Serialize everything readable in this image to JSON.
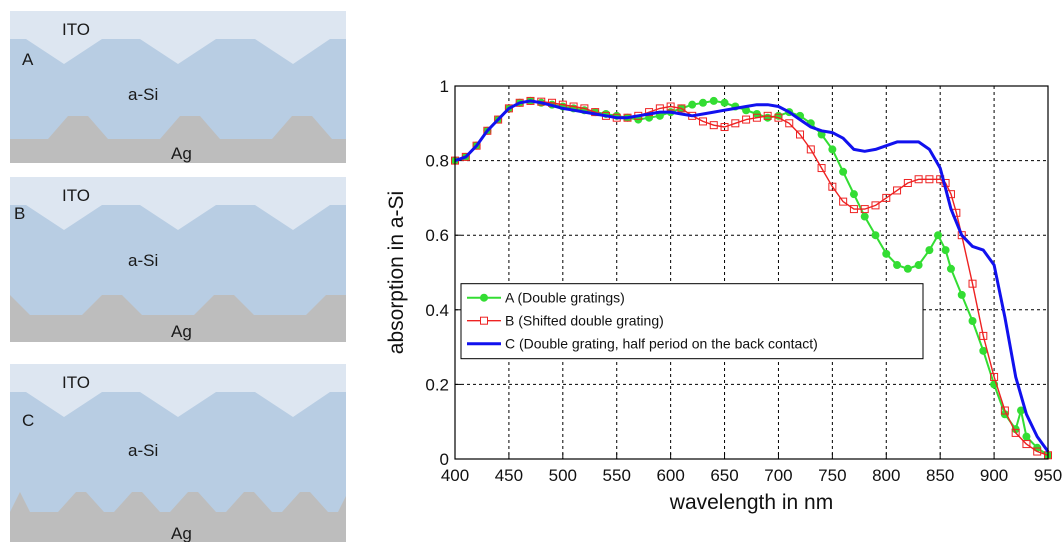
{
  "panels": [
    {
      "id": "A",
      "letter": "A",
      "top_label": "ITO",
      "middle_label": "a-Si",
      "bottom_label": "Ag"
    },
    {
      "id": "B",
      "letter": "B",
      "top_label": "ITO",
      "middle_label": "a-Si",
      "bottom_label": "Ag"
    },
    {
      "id": "C",
      "letter": "C",
      "top_label": "ITO",
      "middle_label": "a-Si",
      "bottom_label": "Ag"
    }
  ],
  "colors": {
    "ito": "#dde6f1",
    "asi": "#b8cde3",
    "ag": "#bdbdbd",
    "series_a": "#33dd33",
    "series_b": "#ee2222",
    "series_c": "#1111ee"
  },
  "chart_data": {
    "type": "line",
    "title": "",
    "xlabel": "wavelength in nm",
    "ylabel": "absorption in a-Si",
    "xlim": [
      400,
      950
    ],
    "ylim": [
      0,
      1
    ],
    "xticks": [
      400,
      450,
      500,
      550,
      600,
      650,
      700,
      750,
      800,
      850,
      900,
      950
    ],
    "yticks": [
      0,
      0.2,
      0.4,
      0.6,
      0.8,
      1
    ],
    "ytick_labels": [
      "0",
      "0.2",
      "0.4",
      "0.6",
      "0.8",
      "1"
    ],
    "grid": true,
    "legend_position": "lower-left",
    "series": [
      {
        "name": "A (Double gratings)",
        "marker": "filled-circle",
        "x": [
          400,
          410,
          420,
          430,
          440,
          450,
          460,
          470,
          480,
          490,
          500,
          510,
          520,
          530,
          540,
          550,
          560,
          570,
          580,
          590,
          600,
          610,
          620,
          630,
          640,
          650,
          660,
          670,
          680,
          690,
          700,
          710,
          720,
          730,
          740,
          750,
          760,
          770,
          780,
          790,
          800,
          810,
          820,
          830,
          840,
          848,
          855,
          860,
          870,
          880,
          890,
          900,
          910,
          920,
          925,
          930,
          940,
          950
        ],
        "y": [
          0.8,
          0.81,
          0.84,
          0.88,
          0.91,
          0.94,
          0.955,
          0.96,
          0.955,
          0.95,
          0.945,
          0.94,
          0.935,
          0.93,
          0.925,
          0.92,
          0.915,
          0.91,
          0.915,
          0.92,
          0.93,
          0.94,
          0.95,
          0.955,
          0.96,
          0.955,
          0.945,
          0.935,
          0.925,
          0.915,
          0.92,
          0.93,
          0.92,
          0.9,
          0.87,
          0.83,
          0.77,
          0.71,
          0.65,
          0.6,
          0.55,
          0.52,
          0.51,
          0.52,
          0.56,
          0.6,
          0.56,
          0.51,
          0.44,
          0.37,
          0.29,
          0.2,
          0.12,
          0.08,
          0.13,
          0.06,
          0.03,
          0.01
        ]
      },
      {
        "name": "B (Shifted double grating)",
        "marker": "open-square",
        "x": [
          400,
          410,
          420,
          430,
          440,
          450,
          460,
          470,
          480,
          490,
          500,
          510,
          520,
          530,
          540,
          550,
          560,
          570,
          580,
          590,
          600,
          610,
          620,
          630,
          640,
          650,
          660,
          670,
          680,
          690,
          700,
          710,
          720,
          730,
          740,
          750,
          760,
          770,
          780,
          790,
          800,
          810,
          820,
          830,
          840,
          850,
          855,
          860,
          865,
          870,
          880,
          890,
          900,
          910,
          920,
          930,
          940,
          950
        ],
        "y": [
          0.8,
          0.81,
          0.84,
          0.88,
          0.91,
          0.94,
          0.955,
          0.96,
          0.958,
          0.955,
          0.95,
          0.945,
          0.94,
          0.93,
          0.92,
          0.915,
          0.915,
          0.92,
          0.93,
          0.94,
          0.945,
          0.94,
          0.92,
          0.905,
          0.895,
          0.89,
          0.9,
          0.91,
          0.915,
          0.92,
          0.915,
          0.9,
          0.87,
          0.83,
          0.78,
          0.73,
          0.69,
          0.67,
          0.67,
          0.68,
          0.7,
          0.72,
          0.74,
          0.75,
          0.75,
          0.75,
          0.74,
          0.71,
          0.66,
          0.6,
          0.47,
          0.33,
          0.22,
          0.13,
          0.07,
          0.04,
          0.02,
          0.01
        ]
      },
      {
        "name": "C (Double grating, half period on the back contact)",
        "marker": "none",
        "x": [
          400,
          410,
          420,
          430,
          440,
          450,
          460,
          470,
          480,
          490,
          500,
          510,
          520,
          530,
          540,
          550,
          560,
          570,
          580,
          590,
          600,
          610,
          620,
          630,
          640,
          650,
          660,
          670,
          680,
          690,
          700,
          710,
          720,
          730,
          740,
          750,
          760,
          770,
          780,
          790,
          800,
          810,
          820,
          830,
          840,
          850,
          860,
          870,
          880,
          890,
          900,
          910,
          920,
          930,
          940,
          950
        ],
        "y": [
          0.8,
          0.81,
          0.84,
          0.88,
          0.91,
          0.94,
          0.955,
          0.96,
          0.955,
          0.948,
          0.94,
          0.935,
          0.93,
          0.925,
          0.92,
          0.915,
          0.915,
          0.92,
          0.925,
          0.93,
          0.93,
          0.925,
          0.92,
          0.925,
          0.93,
          0.935,
          0.94,
          0.945,
          0.95,
          0.95,
          0.945,
          0.93,
          0.91,
          0.89,
          0.88,
          0.875,
          0.86,
          0.83,
          0.825,
          0.83,
          0.84,
          0.85,
          0.85,
          0.85,
          0.83,
          0.78,
          0.67,
          0.6,
          0.57,
          0.56,
          0.52,
          0.38,
          0.22,
          0.12,
          0.06,
          0.02
        ]
      }
    ]
  }
}
